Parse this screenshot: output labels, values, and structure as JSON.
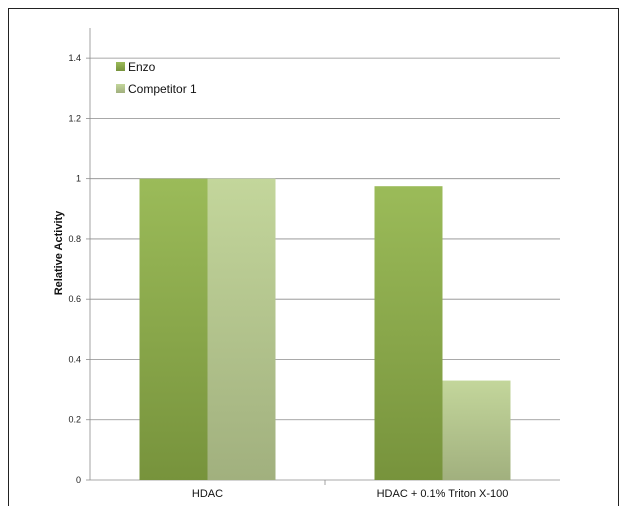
{
  "chart_data": {
    "type": "bar",
    "title": "",
    "xlabel": "",
    "ylabel": "Relative Activity",
    "ylim": [
      0,
      1.5
    ],
    "yticks": [
      0,
      0.2,
      0.4,
      0.6,
      0.8,
      1,
      1.2,
      1.4
    ],
    "ytick_labels": [
      "0",
      "0.2",
      "0.4",
      "0.6",
      "0.8",
      "1",
      "1.2",
      "1.4"
    ],
    "grid": true,
    "legend_position": "top-left",
    "categories": [
      "HDAC",
      "HDAC + 0.1% Triton X-100"
    ],
    "series": [
      {
        "name": "Enzo",
        "values": [
          1.0,
          0.975
        ],
        "color_top": "#9bbb59",
        "color_bottom": "#77933c"
      },
      {
        "name": "Competitor 1",
        "values": [
          1.0,
          0.33
        ],
        "color_top": "#c3d69b",
        "color_bottom": "#a1b07e"
      }
    ]
  }
}
